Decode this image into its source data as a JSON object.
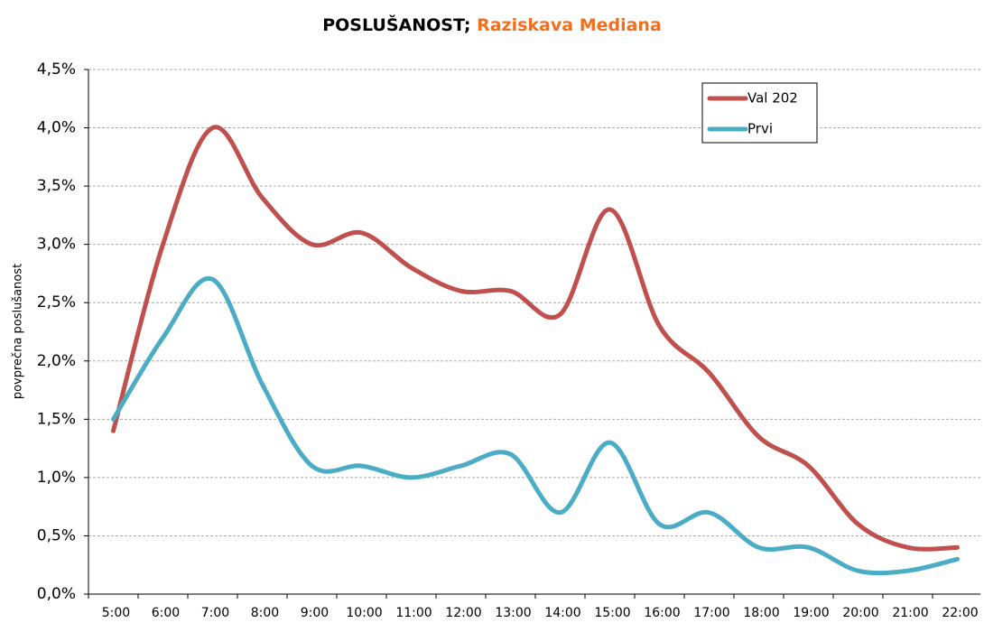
{
  "chart_data": {
    "type": "line",
    "title": "POSLUŠANOST;",
    "subtitle": "Raziskava Mediana",
    "ylabel": "povprečna poslušanost",
    "categories": [
      "5:00",
      "6:00",
      "7:00",
      "8:00",
      "9:00",
      "10:00",
      "11:00",
      "12:00",
      "13:00",
      "14:00",
      "15:00",
      "16:00",
      "17:00",
      "18:00",
      "19:00",
      "20:00",
      "21:00",
      "22:00"
    ],
    "series": [
      {
        "name": "Val 202",
        "color": "#c0504d",
        "values": [
          1.4,
          3.0,
          4.0,
          3.4,
          3.0,
          3.1,
          2.8,
          2.6,
          2.6,
          2.4,
          3.3,
          2.3,
          1.9,
          1.35,
          1.1,
          0.6,
          0.4,
          0.4
        ]
      },
      {
        "name": "Prvi",
        "color": "#4bacc6",
        "values": [
          1.5,
          2.2,
          2.7,
          1.8,
          1.1,
          1.1,
          1.0,
          1.1,
          1.2,
          0.7,
          1.3,
          0.6,
          0.7,
          0.4,
          0.4,
          0.2,
          0.2,
          0.3
        ]
      }
    ],
    "ylim": [
      0,
      4.5
    ],
    "yticks": [
      {
        "value": 0,
        "label": "0,0%"
      },
      {
        "value": 0.5,
        "label": "0,5%"
      },
      {
        "value": 1,
        "label": "1,0%"
      },
      {
        "value": 1.5,
        "label": "1,5%"
      },
      {
        "value": 2,
        "label": "2,0%"
      },
      {
        "value": 2.5,
        "label": "2,5%"
      },
      {
        "value": 3,
        "label": "3,0%"
      },
      {
        "value": 3.5,
        "label": "3,5%"
      },
      {
        "value": 4,
        "label": "4,0%"
      },
      {
        "value": 4.5,
        "label": "4,5%"
      }
    ],
    "grid": true,
    "smooth": true,
    "legend": "top-right"
  }
}
